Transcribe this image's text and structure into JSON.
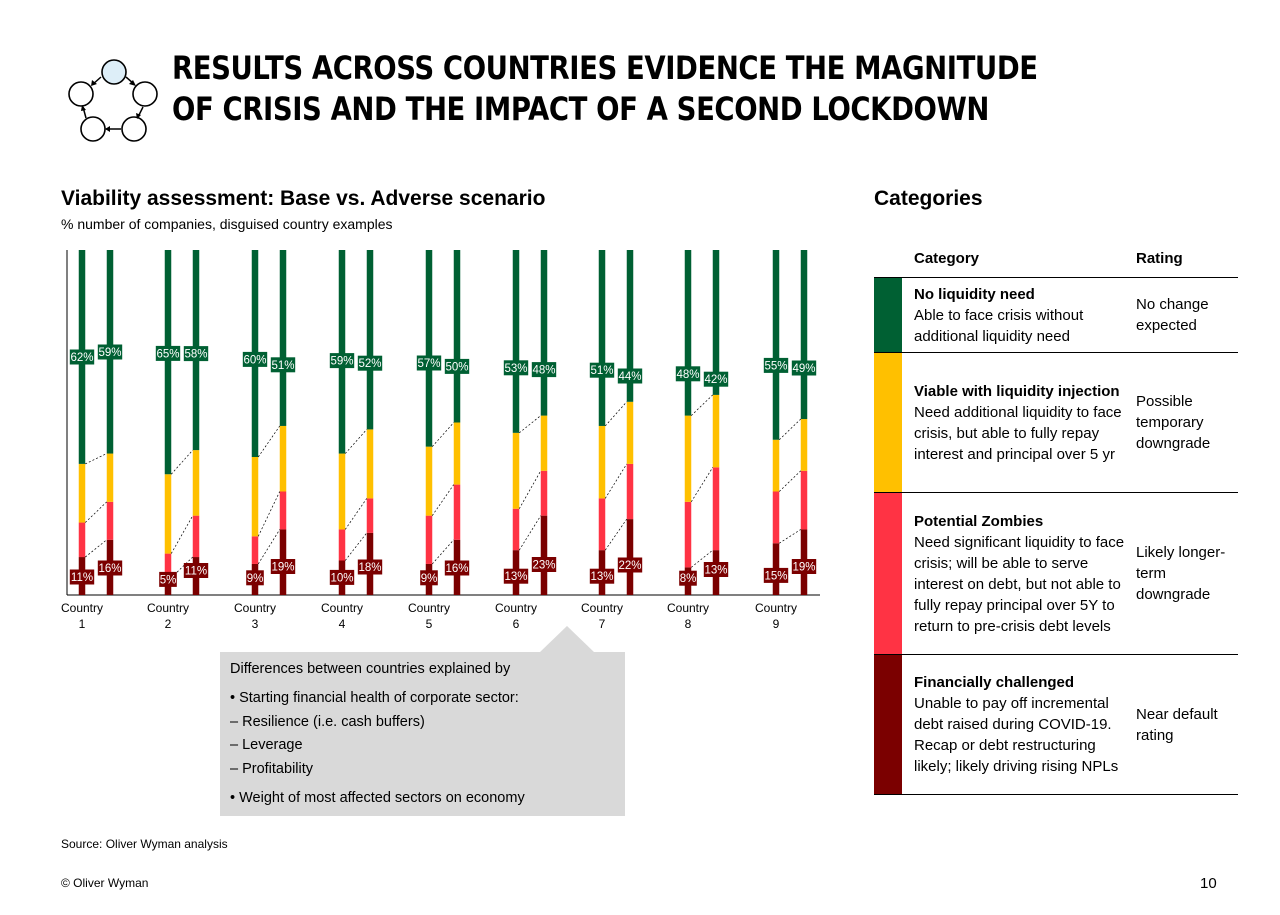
{
  "title": "RESULTS ACROSS COUNTRIES EVIDENCE THE MAGNITUDE OF CRISIS AND THE IMPACT OF A SECOND LOCKDOWN",
  "logo_icon": "cycle-circles-icon",
  "chart_title": "Viability assessment: Base vs. Adverse scenario",
  "chart_subtitle": "% number of companies, disguised country examples",
  "colors": {
    "no_liquidity_need": "#006033",
    "viable_with_liquidity": "#ffc000",
    "potential_zombies": "#ff3344",
    "financially_challenged": "#7b0000"
  },
  "chart_data": {
    "type": "bar",
    "stacked": true,
    "ylim": [
      0,
      100
    ],
    "grid": false,
    "categories": [
      "Country\n1",
      "Country\n2",
      "Country\n3",
      "Country\n4",
      "Country\n5",
      "Country\n6",
      "Country\n7",
      "Country\n8",
      "Country\n9"
    ],
    "scenarios": [
      "Base",
      "Adverse"
    ],
    "series": [
      {
        "name": "Financially challenged",
        "base": [
          11,
          5,
          9,
          10,
          9,
          13,
          13,
          8,
          15
        ],
        "adverse": [
          16,
          11,
          19,
          18,
          16,
          23,
          22,
          13,
          19
        ]
      },
      {
        "name": "Potential Zombies",
        "base": [
          10,
          7,
          8,
          9,
          14,
          12,
          15,
          19,
          15
        ],
        "adverse": [
          11,
          12,
          11,
          10,
          16,
          13,
          16,
          24,
          17
        ]
      },
      {
        "name": "Viable with liquidity injection",
        "base": [
          17,
          23,
          23,
          22,
          20,
          22,
          21,
          25,
          15
        ],
        "adverse": [
          14,
          19,
          19,
          20,
          18,
          16,
          18,
          21,
          15
        ]
      },
      {
        "name": "No liquidity need",
        "base": [
          62,
          65,
          60,
          59,
          57,
          53,
          51,
          48,
          55
        ],
        "adverse": [
          59,
          58,
          51,
          52,
          50,
          48,
          44,
          42,
          49
        ]
      }
    ],
    "labels": {
      "top_base": [
        "62%",
        "65%",
        "60%",
        "59%",
        "57%",
        "53%",
        "51%",
        "48%",
        "55%"
      ],
      "top_adverse": [
        "59%",
        "58%",
        "51%",
        "52%",
        "50%",
        "48%",
        "44%",
        "42%",
        "49%"
      ],
      "bottom_base": [
        "11%",
        "5%",
        "9%",
        "10%",
        "9%",
        "13%",
        "13%",
        "8%",
        "15%"
      ],
      "bottom_adverse": [
        "16%",
        "11%",
        "19%",
        "18%",
        "16%",
        "23%",
        "22%",
        "13%",
        "19%"
      ]
    }
  },
  "callout": {
    "intro": "Differences between countries explained by",
    "bullet1": "Starting financial health of corporate sector:",
    "sub_items": [
      "Resilience (i.e. cash buffers)",
      "Leverage",
      "Profitability"
    ],
    "bullet2": "Weight of most affected sectors on economy"
  },
  "categories_panel": {
    "heading": "Categories",
    "col_category": "Category",
    "col_rating": "Rating",
    "rows": [
      {
        "name": "No liquidity need",
        "desc": "Able to face crisis without additional liquidity need",
        "rating": "No change expected",
        "color": "#006033"
      },
      {
        "name": "Viable with liquidity injection",
        "desc": "Need additional liquidity to face crisis, but able to fully repay interest and principal over 5 yr",
        "rating": "Possible temporary downgrade",
        "color": "#ffc000"
      },
      {
        "name": "Potential Zombies",
        "desc": "Need significant liquidity to face crisis; will be able to serve interest on debt, but not able to fully repay principal over 5Y to return to pre-crisis debt levels",
        "rating": "Likely longer-term downgrade",
        "color": "#ff3344"
      },
      {
        "name": "Financially challenged",
        "desc": "Unable to pay off incremental debt raised during COVID-19. Recap or debt restructuring likely; likely driving rising NPLs",
        "rating": "Near default rating",
        "color": "#7b0000"
      }
    ]
  },
  "source": "Source: Oliver Wyman analysis",
  "copyright": "© Oliver Wyman",
  "page_number": "10"
}
